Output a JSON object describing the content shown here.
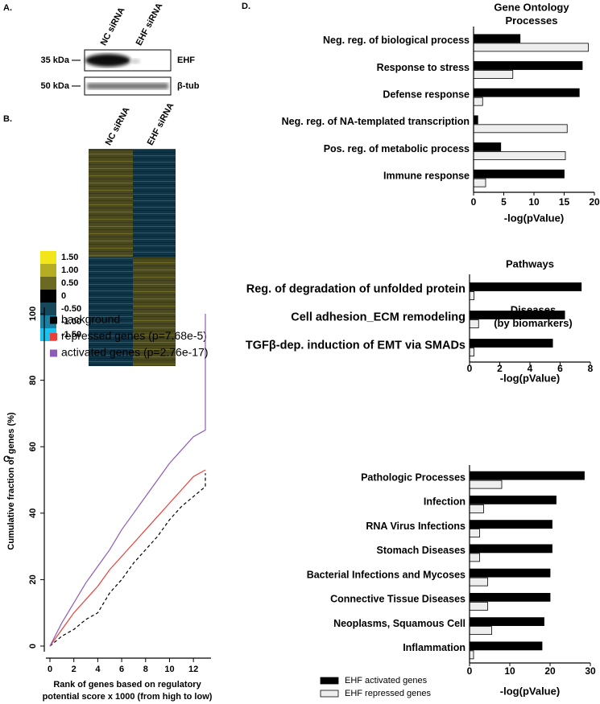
{
  "panel_labels": [
    "A.",
    "B.",
    "C.",
    "D."
  ],
  "blot": {
    "lanes": [
      "NC siRNA",
      "EHF siRNA"
    ],
    "markers": [
      "35 kDa —",
      "50 kDa —"
    ],
    "bands": [
      "EHF",
      "β-tub"
    ]
  },
  "heatmap": {
    "columns": [
      "NC siRNA",
      "EHF siRNA"
    ],
    "colorbar": {
      "ticks": [
        {
          "value": 1.5,
          "label": "1.50"
        },
        {
          "value": 1,
          "label": "1.00"
        },
        {
          "value": 0.5,
          "label": "0.50"
        },
        0,
        {
          "value": -0.5,
          "label": "-0.50"
        },
        {
          "value": -1,
          "label": "-1.00"
        },
        {
          "value": -1.5,
          "label": "-1.50"
        }
      ],
      "colors": [
        "#f2e51a",
        "#b5ae25",
        "#6b6a22",
        "#000000",
        "#17485a",
        "#1b80a2",
        "#1cc2ee"
      ]
    }
  },
  "chart_data": [
    {
      "type": "line",
      "x": [
        0,
        1,
        2,
        3,
        4,
        5,
        6,
        7,
        8,
        9,
        10,
        11,
        12,
        13,
        13
      ],
      "series": [
        {
          "name": "background",
          "color": "#000000",
          "dash": true,
          "values": [
            0,
            3,
            5,
            8,
            10,
            16,
            20,
            25,
            29,
            33,
            38,
            42,
            45,
            48,
            52
          ]
        },
        {
          "name": "repressed genes (p=7.68e-5)",
          "color": "#e8413a",
          "dash": false,
          "values": [
            0,
            5,
            10,
            14,
            18,
            23,
            27,
            31,
            35,
            39,
            43,
            47,
            51,
            53,
            53
          ]
        },
        {
          "name": "activated genes (p=2.76e-17)",
          "color": "#8e5bb8",
          "dash": false,
          "values": [
            0,
            7,
            13,
            19,
            24,
            29,
            35,
            40,
            45,
            50,
            55,
            59,
            63,
            65,
            100
          ]
        }
      ],
      "xlim": [
        0,
        13
      ],
      "xticks": [
        0,
        2,
        4,
        6,
        8,
        10,
        12
      ],
      "ylim": [
        0,
        100
      ],
      "yticks": [
        0,
        20,
        40,
        60,
        80,
        100
      ],
      "xlabel": [
        "Rank of genes based on regulatory",
        "potential score x 1000 (from high to low)"
      ],
      "ylabel": "Cumulative fraction of genes (%)",
      "legend": "top-left"
    },
    {
      "type": "barh",
      "title": [
        "Gene Ontology",
        "Processes"
      ],
      "categories": [
        "Neg. reg. of biological process",
        "Response to stress",
        "Defense response",
        "Neg. reg. of NA-templated transcription",
        "Pos. reg. of metabolic process",
        "Immune response"
      ],
      "series": [
        {
          "color": "#000000",
          "values": [
            7.7,
            18,
            17.5,
            0.7,
            4.5,
            15
          ]
        },
        {
          "color": "#eeeeee",
          "values": [
            19,
            6.5,
            1.5,
            15.5,
            15.2,
            2
          ]
        }
      ],
      "xlim": [
        0,
        20
      ],
      "xticks": [
        0,
        5,
        10,
        15,
        20
      ],
      "xlabel": "-log(pValue)"
    },
    {
      "type": "barh",
      "title": [
        "Pathways"
      ],
      "categories": [
        "Reg. of degradation of unfolded protein",
        "Cell adhesion_ECM remodeling",
        "TGFβ-dep. induction of EMT via SMADs"
      ],
      "series": [
        {
          "color": "#000000",
          "values": [
            7.4,
            6.3,
            5.5
          ]
        },
        {
          "color": "#eeeeee",
          "values": [
            0.3,
            0.6,
            0.3
          ]
        }
      ],
      "xlim": [
        0,
        8
      ],
      "xticks": [
        0,
        2,
        4,
        6,
        8
      ],
      "xlabel": "-log(pValue)"
    },
    {
      "type": "barh",
      "title": [
        "Diseases",
        "(by biomarkers)"
      ],
      "categories": [
        "Pathologic Processes",
        "Infection",
        "RNA Virus Infections",
        "Stomach Diseases",
        "Bacterial Infections and Mycoses",
        "Connective Tissue Diseases",
        "Neoplasms, Squamous Cell",
        "Inflammation"
      ],
      "series": [
        {
          "name": "EHF activated genes",
          "color": "#000000",
          "values": [
            28.5,
            21.5,
            20.5,
            20.5,
            20,
            20,
            18.5,
            18
          ]
        },
        {
          "name": "EHF repressed genes",
          "color": "#eeeeee",
          "values": [
            8,
            3.5,
            2.5,
            2.5,
            4.5,
            4.5,
            5.5,
            1
          ]
        }
      ],
      "xlim": [
        0,
        30
      ],
      "xticks": [
        0,
        10,
        20,
        30
      ],
      "xlabel": "-log(pValue)",
      "legend": "bottom-left"
    }
  ]
}
